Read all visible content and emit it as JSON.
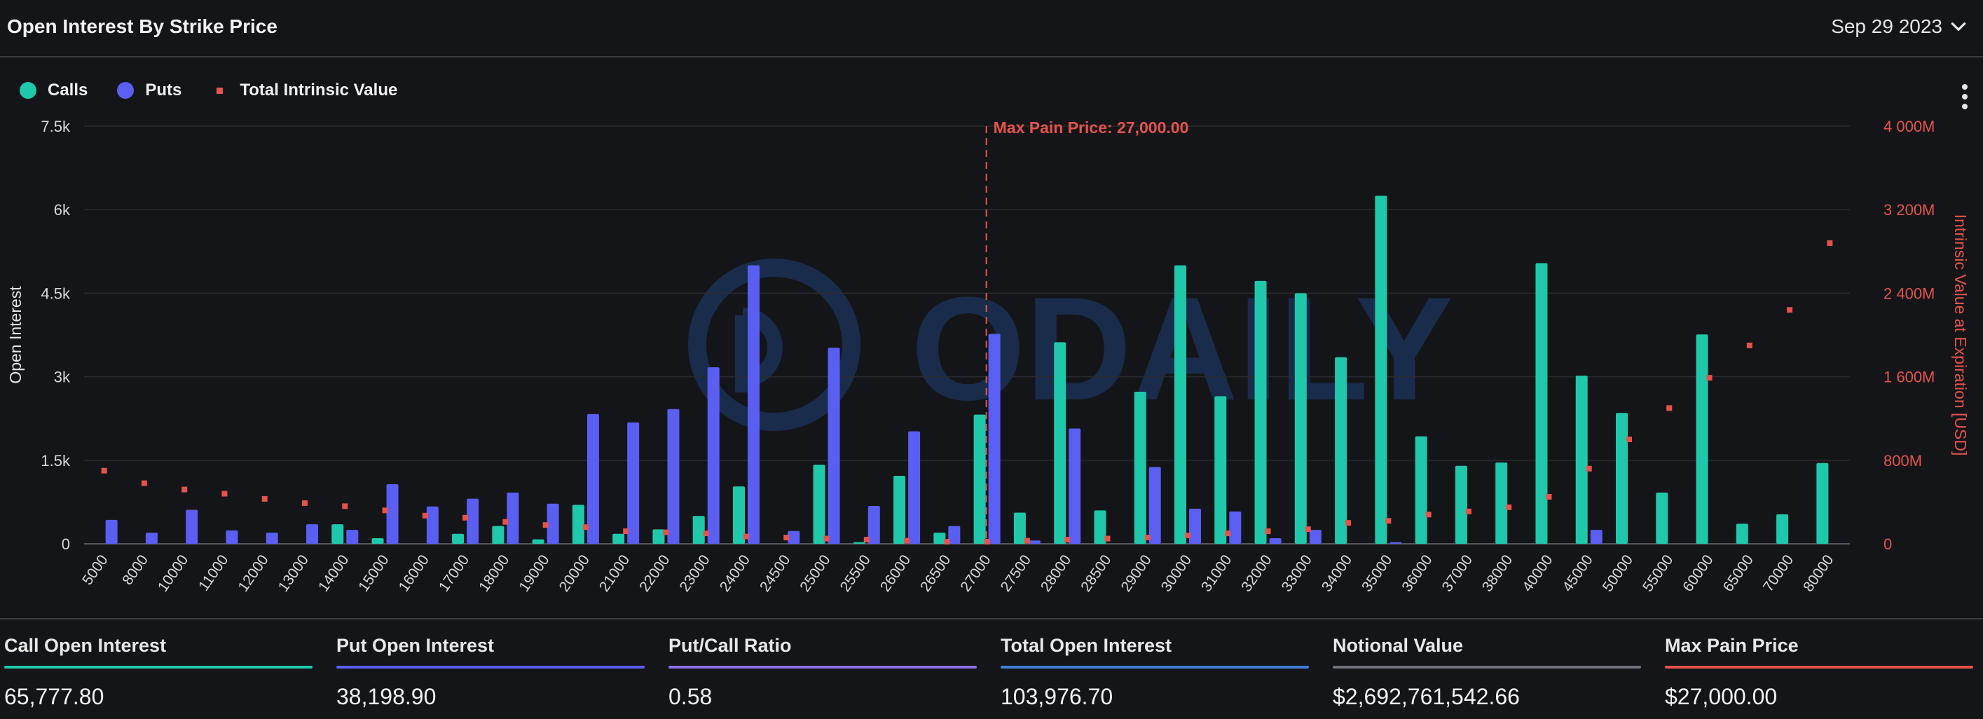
{
  "header": {
    "title": "Open Interest By Strike Price",
    "date": "Sep 29 2023"
  },
  "legend": [
    {
      "label": "Calls",
      "color": "#1fc8aa",
      "shape": "circle"
    },
    {
      "label": "Puts",
      "color": "#5a5ff2",
      "shape": "circle"
    },
    {
      "label": "Total Intrinsic Value",
      "color": "#e5534b",
      "shape": "square"
    }
  ],
  "menu_icon": "kebab-icon",
  "chart_data": {
    "type": "bar",
    "ylabel": "Open Interest",
    "y2label": "Intrinsic Value at Expiration [USD]",
    "ylim": [
      0,
      7500
    ],
    "y2lim": [
      0,
      4000
    ],
    "yticks": [
      "0",
      "1.5k",
      "3k",
      "4.5k",
      "6k",
      "7.5k"
    ],
    "y2ticks": [
      "0",
      "800M",
      "1 600M",
      "2 400M",
      "3 200M",
      "4 000M"
    ],
    "grid": true,
    "annotation": {
      "label": "Max Pain Price: 27,000.00",
      "category": "27000"
    },
    "categories": [
      "5000",
      "8000",
      "10000",
      "11000",
      "12000",
      "13000",
      "14000",
      "15000",
      "16000",
      "17000",
      "18000",
      "19000",
      "20000",
      "21000",
      "22000",
      "23000",
      "24000",
      "24500",
      "25000",
      "25500",
      "26000",
      "26500",
      "27000",
      "27500",
      "28000",
      "28500",
      "29000",
      "30000",
      "31000",
      "32000",
      "33000",
      "34000",
      "35000",
      "36000",
      "37000",
      "38000",
      "40000",
      "45000",
      "50000",
      "55000",
      "60000",
      "65000",
      "70000",
      "80000"
    ],
    "series": [
      {
        "name": "Calls",
        "color": "#1fc8aa",
        "values": [
          0,
          0,
          0,
          0,
          0,
          0,
          350,
          100,
          0,
          180,
          320,
          80,
          700,
          180,
          260,
          500,
          1030,
          0,
          1420,
          30,
          1220,
          200,
          2320,
          560,
          3620,
          600,
          2730,
          5000,
          2650,
          4720,
          4500,
          3350,
          6250,
          1930,
          1400,
          1460,
          5040,
          3020,
          2350,
          920,
          3760,
          360,
          530,
          1450
        ]
      },
      {
        "name": "Puts",
        "color": "#5a5ff2",
        "values": [
          430,
          200,
          610,
          240,
          200,
          350,
          250,
          1070,
          670,
          810,
          920,
          720,
          2330,
          2180,
          2420,
          3170,
          5000,
          230,
          3520,
          680,
          2020,
          320,
          3770,
          60,
          2070,
          0,
          1380,
          630,
          580,
          100,
          250,
          0,
          30,
          0,
          0,
          0,
          0,
          250,
          0,
          0,
          0,
          0,
          0,
          0
        ]
      },
      {
        "name": "Total Intrinsic Value",
        "color": "#e5534b",
        "values": [
          700,
          580,
          520,
          480,
          430,
          390,
          360,
          320,
          270,
          250,
          210,
          180,
          160,
          120,
          110,
          100,
          70,
          60,
          50,
          40,
          30,
          20,
          20,
          30,
          40,
          50,
          60,
          80,
          100,
          120,
          140,
          200,
          220,
          280,
          310,
          350,
          450,
          720,
          1000,
          1300,
          1590,
          1900,
          2240,
          2880
        ]
      }
    ]
  },
  "stats": [
    {
      "label": "Call Open Interest",
      "value": "65,777.80",
      "color": "#1fc8aa"
    },
    {
      "label": "Put Open Interest",
      "value": "38,198.90",
      "color": "#5a5ff2"
    },
    {
      "label": "Put/Call Ratio",
      "value": "0.58",
      "color": "#8b6fe8"
    },
    {
      "label": "Total Open Interest",
      "value": "103,976.70",
      "color": "#3f7fd8"
    },
    {
      "label": "Notional Value",
      "value": "$2,692,761,542.66",
      "color": "#6c717a"
    },
    {
      "label": "Max Pain Price",
      "value": "$27,000.00",
      "color": "#e5534b"
    }
  ],
  "watermark": "ODAILY"
}
